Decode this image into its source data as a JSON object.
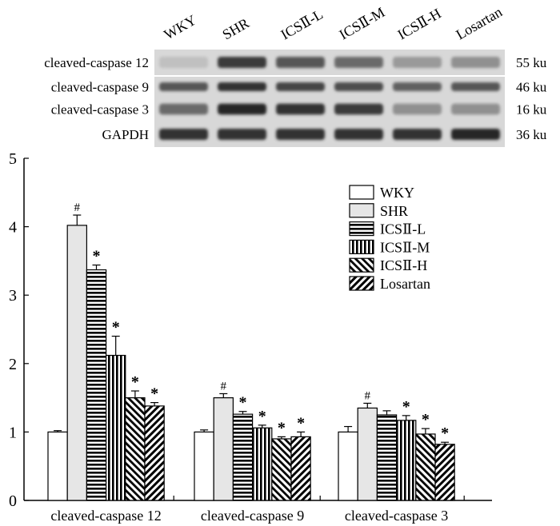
{
  "blot": {
    "lanes": [
      "WKY",
      "SHR",
      "ICSⅡ-L",
      "ICSⅡ-M",
      "ICSⅡ-H",
      "Losartan"
    ],
    "rows": [
      {
        "label": "cleaved-caspase 12",
        "size": "55 ku",
        "intensity": [
          0.15,
          0.85,
          0.7,
          0.6,
          0.35,
          0.4
        ]
      },
      {
        "label": "cleaved-caspase 9",
        "size": "46 ku",
        "intensity": [
          0.7,
          0.9,
          0.8,
          0.75,
          0.65,
          0.7
        ]
      },
      {
        "label": "cleaved-caspase 3",
        "size": "16 ku",
        "intensity": [
          0.6,
          0.95,
          0.9,
          0.85,
          0.4,
          0.4
        ]
      },
      {
        "label": "GAPDH",
        "size": "36 ku",
        "intensity": [
          0.9,
          0.9,
          0.9,
          0.9,
          0.9,
          0.95
        ]
      }
    ]
  },
  "chart_data": {
    "type": "bar",
    "title": "",
    "xlabel": "",
    "ylabel": "",
    "ylim": [
      0,
      5
    ],
    "yticks": [
      "0",
      "1",
      "2",
      "3",
      "4",
      "5"
    ],
    "categories": [
      "cleaved-caspase 12",
      "cleaved-caspase 9",
      "cleaved-caspase 3"
    ],
    "legend_position": "top-right",
    "series": [
      {
        "name": "WKY",
        "pattern": "white",
        "values": [
          1.0,
          1.0,
          1.0
        ],
        "errors": [
          0.02,
          0.03,
          0.08
        ],
        "marks": [
          "",
          "",
          ""
        ]
      },
      {
        "name": "SHR",
        "pattern": "lightgray",
        "values": [
          4.02,
          1.5,
          1.35
        ],
        "errors": [
          0.15,
          0.06,
          0.07
        ],
        "marks": [
          "#",
          "#",
          "#"
        ]
      },
      {
        "name": "ICSⅡ-L",
        "pattern": "horizontal",
        "values": [
          3.37,
          1.26,
          1.25
        ],
        "errors": [
          0.07,
          0.04,
          0.06
        ],
        "marks": [
          "*",
          "*",
          ""
        ]
      },
      {
        "name": "ICSⅡ-M",
        "pattern": "vertical",
        "values": [
          2.12,
          1.06,
          1.17
        ],
        "errors": [
          0.28,
          0.04,
          0.07
        ],
        "marks": [
          "*",
          "*",
          "*"
        ]
      },
      {
        "name": "ICSⅡ-H",
        "pattern": "diagonal",
        "values": [
          1.5,
          0.9,
          0.97
        ],
        "errors": [
          0.1,
          0.03,
          0.08
        ],
        "marks": [
          "*",
          "*",
          "*"
        ]
      },
      {
        "name": "Losartan",
        "pattern": "backdiagonal",
        "values": [
          1.38,
          0.93,
          0.82
        ],
        "errors": [
          0.05,
          0.07,
          0.03
        ],
        "marks": [
          "*",
          "*",
          "*"
        ]
      }
    ]
  }
}
